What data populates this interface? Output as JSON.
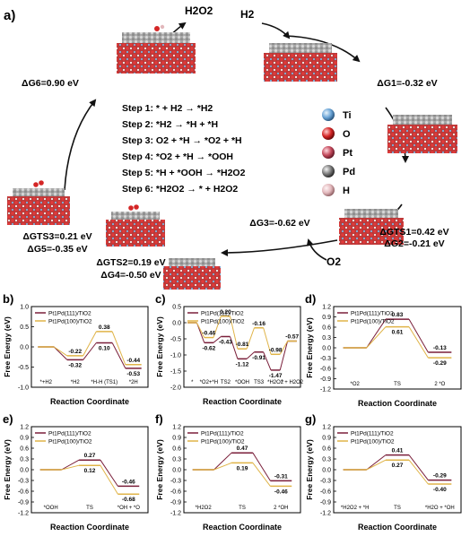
{
  "panel_a": {
    "label": "a)",
    "species": {
      "top_left": "H2O2",
      "top_right": "H2",
      "bottom": "O2"
    },
    "energies": {
      "g1": "ΔG1=-0.32 eV",
      "g6": "ΔG6=0.90 eV",
      "g3": "ΔG3=-0.62 eV",
      "gts1": "ΔGTS1=0.42 eV",
      "g2": "ΔG2=-0.21 eV",
      "gts3": "ΔGTS3=0.21 eV",
      "g5": "ΔG5=-0.35 eV",
      "gts2": "ΔGTS2=0.19 eV",
      "g4": "ΔG4=-0.50 eV"
    },
    "steps": [
      "Step 1: * + H2 → *H2",
      "Step 2: *H2 → *H + *H",
      "Step 3: O2 + *H → *O2 + *H",
      "Step 4: *O2 + *H → *OOH",
      "Step 5: *H + *OOH → *H2O2",
      "Step 6: *H2O2 → * + H2O2"
    ],
    "legend": [
      {
        "label": "Ti",
        "color": "#6aa4d6"
      },
      {
        "label": "O",
        "color": "#d42626"
      },
      {
        "label": "Pt",
        "color": "#c44a5c"
      },
      {
        "label": "Pd",
        "color": "#7a7a7a"
      },
      {
        "label": "H",
        "color": "#e2b8bc"
      }
    ]
  },
  "colors": {
    "pt111": "#7a1f3a",
    "pd100": "#e0b448"
  },
  "chart_data": [
    {
      "id": "b",
      "label": "b)",
      "type": "line",
      "ylabel": "Free Energy (eV)",
      "xlabel": "Reaction Coordinate",
      "ylim": [
        -1.0,
        1.0
      ],
      "yticks": [
        -1.0,
        -0.5,
        0.0,
        0.5,
        1.0
      ],
      "categories": [
        "*+H2",
        "*H2",
        "*H-H (TS1)",
        "*2H"
      ],
      "series": [
        {
          "name": "Pt1Pd(111)/TiO2",
          "values": [
            0.0,
            -0.32,
            0.1,
            -0.53
          ]
        },
        {
          "name": "Pt1Pd(100)/TiO2",
          "values": [
            0.0,
            -0.22,
            0.38,
            -0.44
          ]
        }
      ],
      "labels": [
        {
          "text": "-0.22",
          "x": 1,
          "y": -0.22,
          "pos": "above"
        },
        {
          "text": "-0.32",
          "x": 1,
          "y": -0.32,
          "pos": "below"
        },
        {
          "text": "0.38",
          "x": 2,
          "y": 0.38,
          "pos": "above"
        },
        {
          "text": "0.10",
          "x": 2,
          "y": 0.1,
          "pos": "below"
        },
        {
          "text": "-0.44",
          "x": 3,
          "y": -0.44,
          "pos": "above"
        },
        {
          "text": "-0.53",
          "x": 3,
          "y": -0.53,
          "pos": "below"
        }
      ]
    },
    {
      "id": "c",
      "label": "c)",
      "type": "line",
      "ylabel": "Free Energy (eV)",
      "xlabel": "Reaction Coordinate",
      "ylim": [
        -2.0,
        0.5
      ],
      "yticks": [
        -2.0,
        -1.5,
        -1.0,
        -0.5,
        0.0,
        0.5
      ],
      "categories": [
        "*",
        "*O2+*H",
        "TS2",
        "*OOH",
        "TS3",
        "*H2O2",
        "* + H2O2"
      ],
      "series": [
        {
          "name": "Pt1Pd(111)/TiO2",
          "values": [
            0.0,
            -0.62,
            -0.43,
            -1.12,
            -0.91,
            -1.47,
            -0.57
          ]
        },
        {
          "name": "Pt1Pd(100)/TiO2",
          "values": [
            0.0,
            -0.46,
            0.2,
            -0.81,
            -0.16,
            -0.98,
            -0.57
          ]
        }
      ],
      "labels": [
        {
          "text": "-0.46",
          "x": 1,
          "y": -0.46,
          "pos": "above"
        },
        {
          "text": "-0.62",
          "x": 1,
          "y": -0.62,
          "pos": "below"
        },
        {
          "text": "0.20",
          "x": 2,
          "y": 0.2,
          "pos": "above"
        },
        {
          "text": "-0.43",
          "x": 2,
          "y": -0.43,
          "pos": "below"
        },
        {
          "text": "-0.81",
          "x": 3,
          "y": -0.81,
          "pos": "above"
        },
        {
          "text": "-1.12",
          "x": 3,
          "y": -1.12,
          "pos": "below"
        },
        {
          "text": "-0.16",
          "x": 4,
          "y": -0.16,
          "pos": "above"
        },
        {
          "text": "-0.91",
          "x": 4,
          "y": -0.91,
          "pos": "below"
        },
        {
          "text": "-0.98",
          "x": 5,
          "y": -0.98,
          "pos": "above"
        },
        {
          "text": "-1.47",
          "x": 5,
          "y": -1.47,
          "pos": "below"
        },
        {
          "text": "-0.57",
          "x": 6,
          "y": -0.57,
          "pos": "above"
        }
      ]
    },
    {
      "id": "d",
      "label": "d)",
      "type": "line",
      "ylabel": "Free Energy (eV)",
      "xlabel": "Reaction Coordinate",
      "ylim": [
        -1.2,
        1.2
      ],
      "yticks": [
        -1.2,
        -0.9,
        -0.6,
        -0.3,
        0.0,
        0.3,
        0.6,
        0.9,
        1.2
      ],
      "categories": [
        "*O2",
        "TS",
        "2 *O"
      ],
      "series": [
        {
          "name": "Pt1Pd(111)/TiO2",
          "values": [
            0.0,
            0.83,
            -0.13
          ]
        },
        {
          "name": "Pt1Pd(100)/TiO2",
          "values": [
            0.0,
            0.61,
            -0.29
          ]
        }
      ],
      "labels": [
        {
          "text": "0.83",
          "x": 1,
          "y": 0.83,
          "pos": "above"
        },
        {
          "text": "0.61",
          "x": 1,
          "y": 0.61,
          "pos": "below"
        },
        {
          "text": "-0.13",
          "x": 2,
          "y": -0.13,
          "pos": "above"
        },
        {
          "text": "-0.29",
          "x": 2,
          "y": -0.29,
          "pos": "below"
        }
      ]
    },
    {
      "id": "e",
      "label": "e)",
      "type": "line",
      "ylabel": "Free Energy (eV)",
      "xlabel": "Reaction Coordinate",
      "ylim": [
        -1.2,
        1.2
      ],
      "yticks": [
        -1.2,
        -0.9,
        -0.6,
        -0.3,
        0.0,
        0.3,
        0.6,
        0.9,
        1.2
      ],
      "categories": [
        "*OOH",
        "TS",
        "*OH + *O"
      ],
      "series": [
        {
          "name": "Pt1Pd(111)/TiO2",
          "values": [
            0.0,
            0.27,
            -0.46
          ]
        },
        {
          "name": "Pt1Pd(100)/TiO2",
          "values": [
            0.0,
            0.12,
            -0.68
          ]
        }
      ],
      "labels": [
        {
          "text": "0.27",
          "x": 1,
          "y": 0.27,
          "pos": "above"
        },
        {
          "text": "0.12",
          "x": 1,
          "y": 0.12,
          "pos": "below"
        },
        {
          "text": "-0.46",
          "x": 2,
          "y": -0.46,
          "pos": "above"
        },
        {
          "text": "-0.68",
          "x": 2,
          "y": -0.68,
          "pos": "below"
        }
      ]
    },
    {
      "id": "f",
      "label": "f)",
      "type": "line",
      "ylabel": "Free Energy (eV)",
      "xlabel": "Reaction Coordinate",
      "ylim": [
        -1.2,
        1.2
      ],
      "yticks": [
        -1.2,
        -0.9,
        -0.6,
        -0.3,
        0.0,
        0.3,
        0.6,
        0.9,
        1.2
      ],
      "categories": [
        "*H2O2",
        "TS",
        "2 *OH"
      ],
      "series": [
        {
          "name": "Pt1Pd(111)/TiO2",
          "values": [
            0.0,
            0.47,
            -0.31
          ]
        },
        {
          "name": "Pt1Pd(100)/TiO2",
          "values": [
            0.0,
            0.19,
            -0.46
          ]
        }
      ],
      "labels": [
        {
          "text": "0.47",
          "x": 1,
          "y": 0.47,
          "pos": "above"
        },
        {
          "text": "0.19",
          "x": 1,
          "y": 0.19,
          "pos": "below"
        },
        {
          "text": "-0.31",
          "x": 2,
          "y": -0.31,
          "pos": "above"
        },
        {
          "text": "-0.46",
          "x": 2,
          "y": -0.46,
          "pos": "below"
        }
      ]
    },
    {
      "id": "g",
      "label": "g)",
      "type": "line",
      "ylabel": "Free Energy (eV)",
      "xlabel": "Reaction Coordinate",
      "ylim": [
        -1.2,
        1.2
      ],
      "yticks": [
        -1.2,
        -0.9,
        -0.6,
        -0.3,
        0.0,
        0.3,
        0.6,
        0.9,
        1.2
      ],
      "categories": [
        "*H2O2 + *H",
        "TS",
        "*H2O + *OH"
      ],
      "series": [
        {
          "name": "Pt1Pd(111)/TiO2",
          "values": [
            0.0,
            0.41,
            -0.29
          ]
        },
        {
          "name": "Pt1Pd(100)/TiO2",
          "values": [
            0.0,
            0.27,
            -0.4
          ]
        }
      ],
      "labels": [
        {
          "text": "0.41",
          "x": 1,
          "y": 0.41,
          "pos": "above"
        },
        {
          "text": "0.27",
          "x": 1,
          "y": 0.27,
          "pos": "below"
        },
        {
          "text": "-0.29",
          "x": 2,
          "y": -0.29,
          "pos": "above"
        },
        {
          "text": "-0.40",
          "x": 2,
          "y": -0.4,
          "pos": "below"
        }
      ]
    }
  ]
}
